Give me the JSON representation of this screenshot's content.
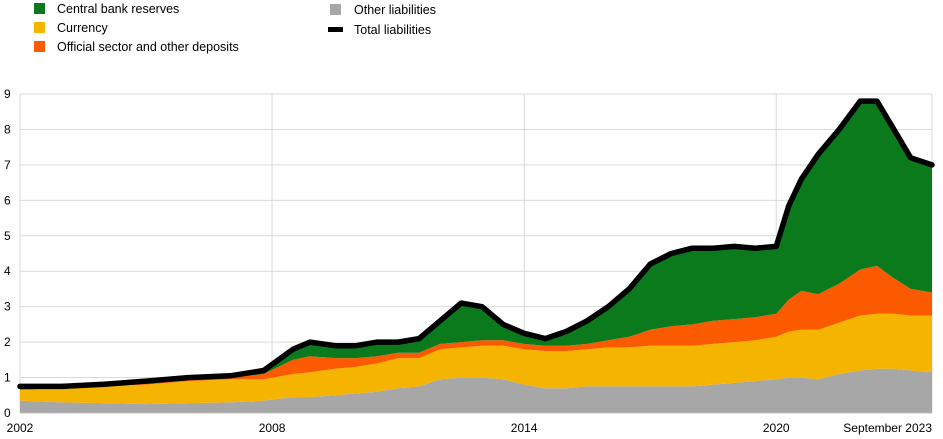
{
  "chart_data": {
    "type": "area",
    "title": "",
    "xlabel": "",
    "ylabel": "",
    "ylim": [
      0,
      9
    ],
    "xlim": [
      2002.0,
      2023.708
    ],
    "grid": true,
    "legend_position": "top",
    "x_ticks": [
      "2002",
      "2008",
      "2014",
      "2020",
      "September 2023"
    ],
    "x_tick_values": [
      2002,
      2008,
      2014,
      2020,
      2023.708
    ],
    "y_ticks": [
      "0",
      "1",
      "2",
      "3",
      "4",
      "5",
      "6",
      "7",
      "8",
      "9"
    ],
    "legend": [
      {
        "name": "Central bank reserves",
        "color": "#0a7a1d",
        "symbol": "square"
      },
      {
        "name": "Currency",
        "color": "#f5b400",
        "symbol": "square"
      },
      {
        "name": "Official sector and other deposits",
        "color": "#fb5a00",
        "symbol": "square"
      },
      {
        "name": "Other liabilities",
        "color": "#a7a7a7",
        "symbol": "square"
      },
      {
        "name": "Total liabilities",
        "color": "#000000",
        "symbol": "line"
      }
    ],
    "x": [
      2002,
      2003,
      2004,
      2005,
      2006,
      2007,
      2007.8,
      2008.5,
      2008.9,
      2009.5,
      2010,
      2010.5,
      2011,
      2011.5,
      2012,
      2012.5,
      2013,
      2013.5,
      2014,
      2014.5,
      2015,
      2015.5,
      2016,
      2016.5,
      2017,
      2017.5,
      2018,
      2018.5,
      2019,
      2019.5,
      2020,
      2020.3,
      2020.6,
      2021,
      2021.5,
      2022,
      2022.4,
      2022.8,
      2023.2,
      2023.708
    ],
    "series": [
      {
        "name": "Other liabilities",
        "color": "#a7a7a7",
        "values": [
          0.35,
          0.3,
          0.28,
          0.25,
          0.28,
          0.3,
          0.35,
          0.45,
          0.45,
          0.5,
          0.55,
          0.6,
          0.7,
          0.75,
          0.95,
          1.0,
          1.0,
          0.95,
          0.8,
          0.7,
          0.7,
          0.75,
          0.75,
          0.75,
          0.75,
          0.75,
          0.75,
          0.8,
          0.85,
          0.9,
          0.95,
          1.0,
          1.0,
          0.95,
          1.1,
          1.2,
          1.25,
          1.25,
          1.2,
          1.15
        ]
      },
      {
        "name": "Currency",
        "color": "#f5b400",
        "values": [
          0.3,
          0.4,
          0.48,
          0.55,
          0.62,
          0.65,
          0.6,
          0.65,
          0.7,
          0.75,
          0.75,
          0.8,
          0.85,
          0.8,
          0.85,
          0.85,
          0.9,
          0.95,
          1.0,
          1.05,
          1.05,
          1.05,
          1.1,
          1.1,
          1.15,
          1.15,
          1.15,
          1.15,
          1.15,
          1.15,
          1.2,
          1.3,
          1.35,
          1.4,
          1.45,
          1.55,
          1.55,
          1.55,
          1.55,
          1.6
        ]
      },
      {
        "name": "Official sector and other deposits",
        "color": "#fb5a00",
        "values": [
          0.1,
          0.05,
          0.05,
          0.05,
          0.05,
          0.05,
          0.15,
          0.4,
          0.45,
          0.3,
          0.25,
          0.2,
          0.15,
          0.15,
          0.15,
          0.15,
          0.15,
          0.15,
          0.15,
          0.15,
          0.15,
          0.15,
          0.2,
          0.3,
          0.45,
          0.55,
          0.6,
          0.65,
          0.65,
          0.65,
          0.65,
          0.9,
          1.1,
          1.0,
          1.1,
          1.3,
          1.35,
          1.0,
          0.75,
          0.65
        ]
      },
      {
        "name": "Central bank reserves",
        "color": "#0a7a1d",
        "values": [
          0.0,
          0.0,
          0.0,
          0.05,
          0.05,
          0.05,
          0.1,
          0.3,
          0.4,
          0.35,
          0.35,
          0.4,
          0.3,
          0.4,
          0.65,
          1.1,
          0.95,
          0.45,
          0.3,
          0.2,
          0.4,
          0.65,
          0.95,
          1.35,
          1.85,
          2.05,
          2.15,
          2.05,
          2.05,
          1.95,
          1.9,
          2.65,
          3.15,
          3.95,
          4.35,
          4.75,
          4.65,
          4.2,
          3.7,
          3.6
        ]
      },
      {
        "name": "Total liabilities",
        "color": "#000000",
        "values": [
          0.75,
          0.75,
          0.81,
          0.9,
          1.0,
          1.05,
          1.2,
          1.8,
          2.0,
          1.9,
          1.9,
          2.0,
          2.0,
          2.1,
          2.6,
          3.1,
          3.0,
          2.5,
          2.25,
          2.1,
          2.3,
          2.6,
          3.0,
          3.5,
          4.2,
          4.5,
          4.65,
          4.65,
          4.7,
          4.65,
          4.7,
          5.85,
          6.6,
          7.3,
          8.0,
          8.8,
          8.8,
          8.0,
          7.2,
          7.0
        ]
      }
    ]
  }
}
